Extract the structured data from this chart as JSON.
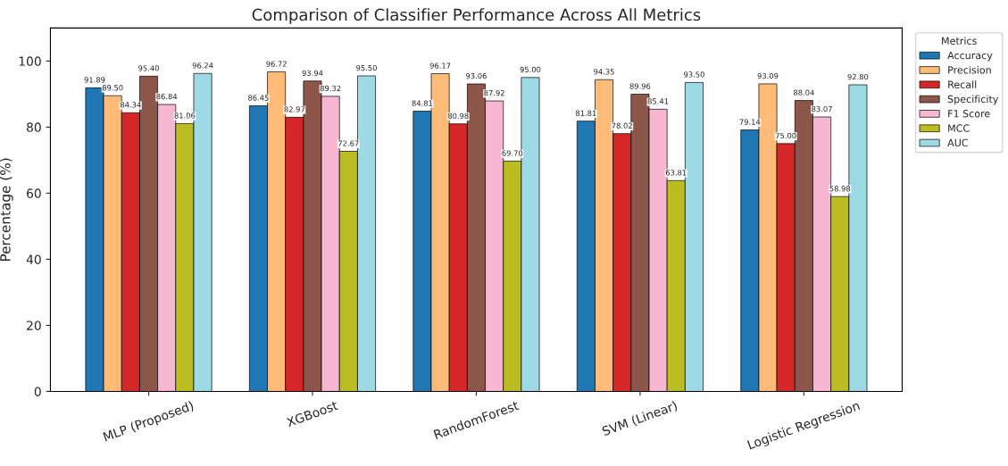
{
  "chart_data": {
    "type": "bar",
    "title": "Comparison of Classifier Performance Across All Metrics",
    "ylabel": "Percentage (%)",
    "legend_title": "Metrics",
    "legend": "top right",
    "grid": false,
    "categories": [
      "MLP (Proposed)",
      "XGBoost",
      "RandomForest",
      "SVM (Linear)",
      "Logistic Regression"
    ],
    "ylim": [
      0,
      110
    ],
    "yticks": [
      0,
      20,
      40,
      60,
      80,
      100
    ],
    "series": [
      {
        "name": "Accuracy",
        "color": "#1f77b4",
        "values": [
          91.89,
          86.45,
          84.81,
          81.81,
          79.14
        ],
        "value_labels": [
          "91.89",
          "86.45",
          "84.81",
          "81.81",
          "79.14"
        ]
      },
      {
        "name": "Precision",
        "color": "#ffbb78",
        "values": [
          89.5,
          96.72,
          96.17,
          94.35,
          93.09
        ],
        "value_labels": [
          "89.50",
          "96.72",
          "96.17",
          "94.35",
          "93.09"
        ]
      },
      {
        "name": "Recall",
        "color": "#d62728",
        "values": [
          84.34,
          82.97,
          80.98,
          78.02,
          75.0
        ],
        "value_labels": [
          "84.34",
          "82.97",
          "80.98",
          "78.02",
          "75.00"
        ]
      },
      {
        "name": "Specificity",
        "color": "#8c564b",
        "values": [
          95.4,
          93.94,
          93.06,
          89.96,
          88.04
        ],
        "value_labels": [
          "95.40",
          "93.94",
          "93.06",
          "89.96",
          "88.04"
        ]
      },
      {
        "name": "F1 Score",
        "color": "#f7b6d2",
        "values": [
          86.84,
          89.32,
          87.92,
          85.41,
          83.07
        ],
        "value_labels": [
          "86.84",
          "89.32",
          "87.92",
          "85.41",
          "83.07"
        ]
      },
      {
        "name": "MCC",
        "color": "#bcbd22",
        "values": [
          81.06,
          72.67,
          69.7,
          63.81,
          58.98
        ],
        "value_labels": [
          "81.06",
          "72.67",
          "69.70",
          "63.81",
          "58.98"
        ]
      },
      {
        "name": "AUC",
        "color": "#9edae5",
        "values": [
          96.24,
          95.5,
          95.0,
          93.5,
          92.8
        ],
        "value_labels": [
          "96.24",
          "95.50",
          "95.00",
          "93.50",
          "92.80"
        ]
      }
    ]
  }
}
